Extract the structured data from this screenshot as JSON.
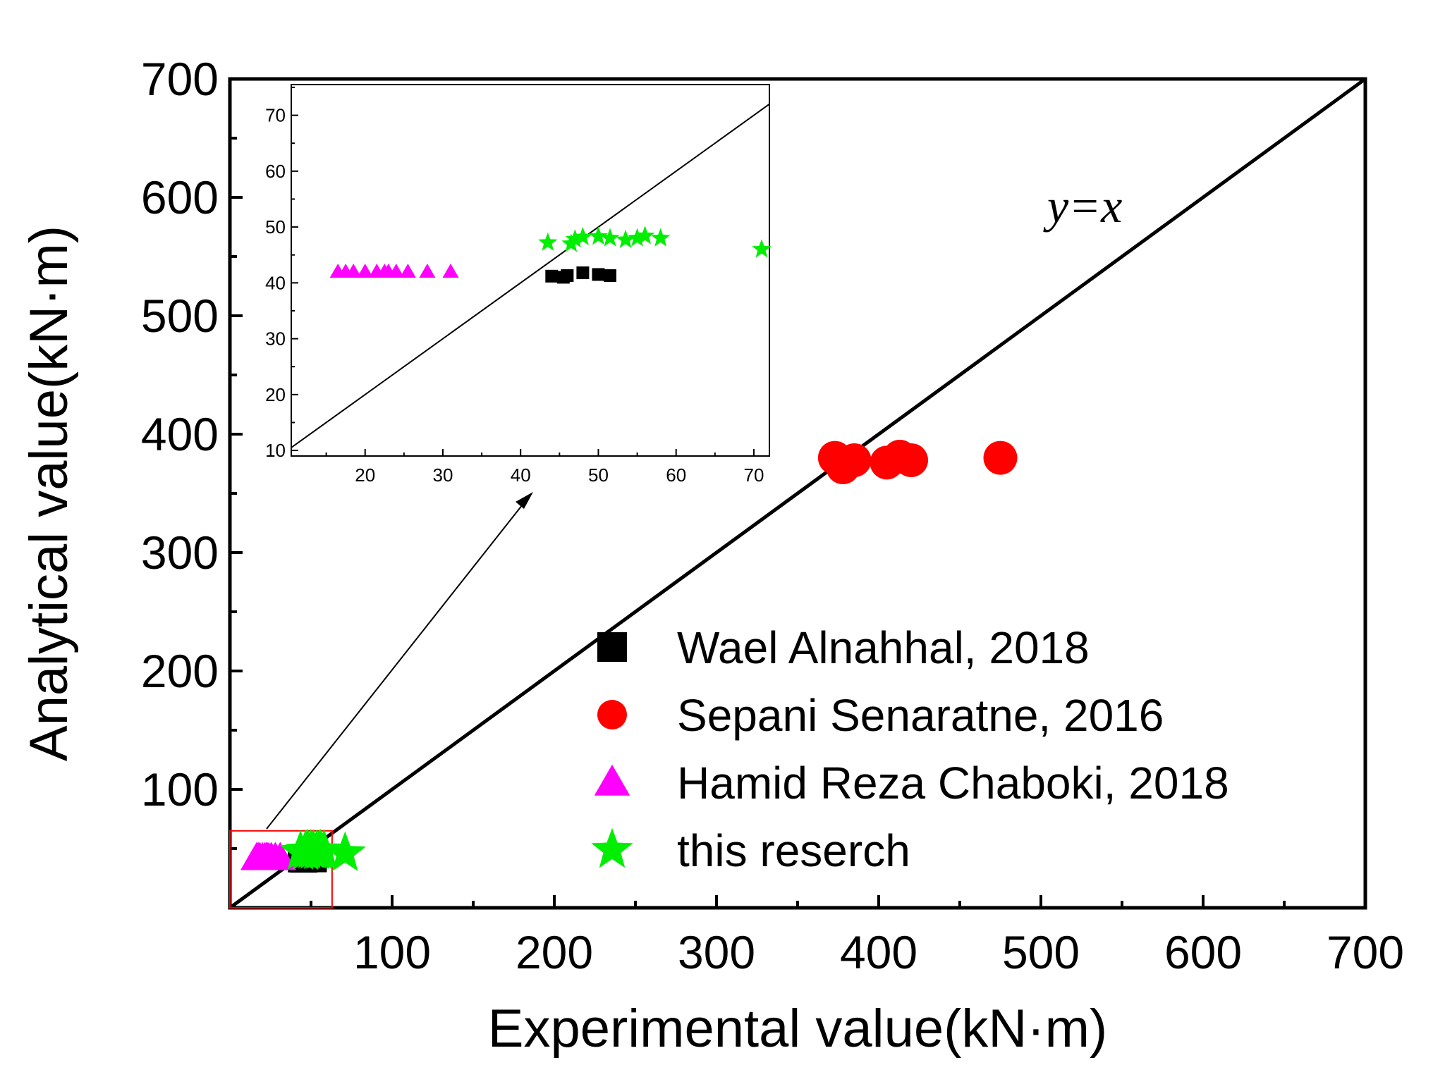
{
  "chart_data": {
    "type": "scatter",
    "xlabel": "Experimental value(kN·m)",
    "ylabel": "Analytical value(kN·m)",
    "xlim": [
      0,
      700
    ],
    "ylim": [
      0,
      700
    ],
    "xticks": [
      100,
      200,
      300,
      400,
      500,
      600,
      700
    ],
    "yticks": [
      100,
      200,
      300,
      400,
      500,
      600,
      700
    ],
    "reference_line": {
      "label": "y=x",
      "slope": 1,
      "intercept": 0
    },
    "series": [
      {
        "name": "Wael Alnahhal, 2018",
        "marker": "square",
        "color": "#000000",
        "points": [
          [
            44,
            41.2
          ],
          [
            45.5,
            41.0
          ],
          [
            46,
            41.3
          ],
          [
            48,
            41.8
          ],
          [
            50,
            41.5
          ],
          [
            51.5,
            41.3
          ]
        ]
      },
      {
        "name": "Sepani Senaratne, 2016",
        "marker": "circle",
        "color": "#ff0000",
        "points": [
          [
            373,
            380
          ],
          [
            378,
            372
          ],
          [
            385,
            378
          ],
          [
            405,
            376
          ],
          [
            413,
            381
          ],
          [
            420,
            378
          ],
          [
            475,
            380
          ]
        ]
      },
      {
        "name": "Hamid Reza Chaboki, 2018",
        "marker": "triangle",
        "color": "#ff00ff",
        "points": [
          [
            16.5,
            42
          ],
          [
            17.5,
            42
          ],
          [
            18.5,
            42
          ],
          [
            20,
            42
          ],
          [
            21.5,
            42
          ],
          [
            22.5,
            42
          ],
          [
            23,
            42
          ],
          [
            24,
            42
          ],
          [
            25.5,
            42
          ],
          [
            28,
            42
          ],
          [
            31,
            42
          ]
        ]
      },
      {
        "name": "this reserch",
        "marker": "star",
        "color": "#00ee00",
        "points": [
          [
            43.5,
            47.2
          ],
          [
            46.5,
            47.0
          ],
          [
            47,
            47.8
          ],
          [
            48,
            48.2
          ],
          [
            50,
            48.3
          ],
          [
            51.5,
            48.0
          ],
          [
            53.5,
            47.7
          ],
          [
            55,
            48.0
          ],
          [
            56,
            48.4
          ],
          [
            58,
            48.0
          ],
          [
            71,
            46
          ]
        ]
      }
    ],
    "inset": {
      "xlim": [
        10.5,
        72
      ],
      "ylim": [
        9,
        75.5
      ],
      "xticks": [
        20,
        30,
        40,
        50,
        60,
        70
      ],
      "yticks": [
        10,
        20,
        30,
        40,
        50,
        60,
        70
      ],
      "zoom_region": {
        "x": [
          0,
          63
        ],
        "y": [
          0,
          65
        ]
      }
    }
  },
  "legend": {
    "entries": [
      "Wael Alnahhal, 2018",
      "Sepani Senaratne, 2016",
      "Hamid Reza Chaboki, 2018",
      "this reserch"
    ]
  },
  "annotation": {
    "equation": "y=x"
  },
  "colors": {
    "axis": "#000000",
    "zoom_box": "#ff0000"
  }
}
